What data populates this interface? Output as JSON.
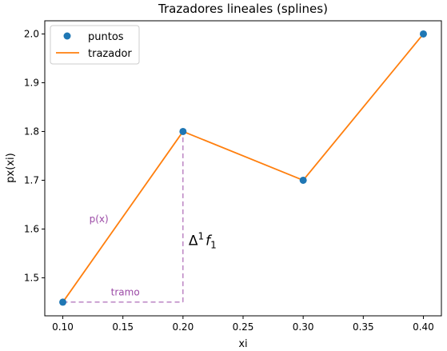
{
  "chart_data": {
    "type": "line",
    "title": "Trazadores lineales (splines)",
    "xlabel": "xi",
    "ylabel": "px(xi)",
    "xlim": [
      0.085,
      0.415
    ],
    "ylim": [
      1.422,
      2.027
    ],
    "xticks": [
      0.1,
      0.15,
      0.2,
      0.25,
      0.3,
      0.35,
      0.4
    ],
    "xtick_labels": [
      "0.10",
      "0.15",
      "0.20",
      "0.25",
      "0.30",
      "0.35",
      "0.40"
    ],
    "yticks": [
      1.5,
      1.6,
      1.7,
      1.8,
      1.9,
      2.0
    ],
    "ytick_labels": [
      "1.5",
      "1.6",
      "1.7",
      "1.8",
      "1.9",
      "2.0"
    ],
    "grid": false,
    "legend_position": "top-left",
    "series": [
      {
        "name": "puntos",
        "kind": "scatter",
        "color": "#1f77b4",
        "x": [
          0.1,
          0.2,
          0.3,
          0.4
        ],
        "y": [
          1.45,
          1.8,
          1.7,
          2.0
        ]
      },
      {
        "name": "trazador",
        "kind": "line",
        "color": "#ff7f0e",
        "x": [
          0.1,
          0.2,
          0.3,
          0.4
        ],
        "y": [
          1.45,
          1.8,
          1.7,
          2.0
        ]
      }
    ],
    "annotations": {
      "color": "#9b4aa6",
      "px_label": {
        "text": "p(x)",
        "x": 0.13,
        "y": 1.62
      },
      "tramo_label": {
        "text": "tramo",
        "x": 0.14,
        "y": 1.47
      },
      "delta_label": {
        "text_base": "Δ",
        "text_sup": "1",
        "text_var": "f",
        "text_sub": "1",
        "x": 0.204,
        "y": 1.58
      },
      "h_line": {
        "x1": 0.1,
        "x2": 0.2,
        "y": 1.45
      },
      "v_line": {
        "x": 0.2,
        "y1": 1.45,
        "y2": 1.8
      }
    }
  }
}
